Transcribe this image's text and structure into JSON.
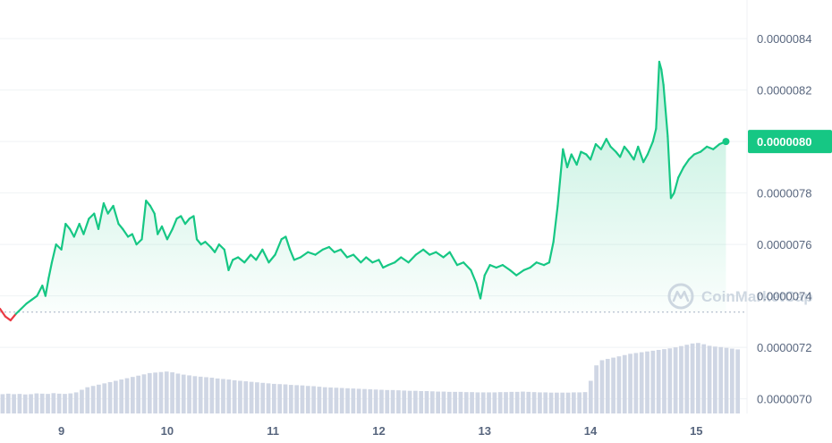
{
  "watermark": "CoinMarketCap",
  "colors": {
    "up": "#16c784",
    "down": "#ea3943",
    "volume": "#cfd6e4",
    "grid": "#eff2f5",
    "baseline": "#a6b0c3"
  },
  "current_price": {
    "label": "0.0000080",
    "value": 8e-06
  },
  "chart_data": {
    "type": "area",
    "x_ticks": [
      "9",
      "10",
      "11",
      "12",
      "13",
      "14",
      "15"
    ],
    "y_ticks": [
      "0.0000084",
      "0.0000082",
      "0.0000080",
      "0.0000078",
      "0.0000076",
      "0.0000074",
      "0.0000072",
      "0.0000070"
    ],
    "y_tick_values": [
      8.4,
      8.2,
      8.0,
      7.8,
      7.6,
      7.4,
      7.2,
      7.0
    ],
    "ylim": [
      6.943,
      8.55
    ],
    "xlim": [
      8.42,
      15.42
    ],
    "baseline_value": 7.337,
    "value_unit": "x 1e-6",
    "price_series": [
      [
        8.42,
        7.35
      ],
      [
        8.47,
        7.32
      ],
      [
        8.52,
        7.305
      ],
      [
        8.57,
        7.33
      ],
      [
        8.62,
        7.35
      ],
      [
        8.67,
        7.37
      ],
      [
        8.72,
        7.385
      ],
      [
        8.77,
        7.4
      ],
      [
        8.82,
        7.44
      ],
      [
        8.85,
        7.4
      ],
      [
        8.88,
        7.47
      ],
      [
        8.91,
        7.53
      ],
      [
        8.95,
        7.6
      ],
      [
        9.0,
        7.58
      ],
      [
        9.04,
        7.68
      ],
      [
        9.08,
        7.66
      ],
      [
        9.12,
        7.63
      ],
      [
        9.17,
        7.68
      ],
      [
        9.21,
        7.64
      ],
      [
        9.26,
        7.7
      ],
      [
        9.31,
        7.72
      ],
      [
        9.35,
        7.66
      ],
      [
        9.4,
        7.76
      ],
      [
        9.44,
        7.72
      ],
      [
        9.49,
        7.75
      ],
      [
        9.54,
        7.68
      ],
      [
        9.58,
        7.66
      ],
      [
        9.63,
        7.63
      ],
      [
        9.67,
        7.64
      ],
      [
        9.71,
        7.6
      ],
      [
        9.76,
        7.62
      ],
      [
        9.8,
        7.77
      ],
      [
        9.84,
        7.75
      ],
      [
        9.88,
        7.72
      ],
      [
        9.91,
        7.64
      ],
      [
        9.95,
        7.67
      ],
      [
        10.0,
        7.62
      ],
      [
        10.05,
        7.66
      ],
      [
        10.09,
        7.7
      ],
      [
        10.13,
        7.71
      ],
      [
        10.17,
        7.68
      ],
      [
        10.21,
        7.7
      ],
      [
        10.25,
        7.71
      ],
      [
        10.28,
        7.62
      ],
      [
        10.32,
        7.6
      ],
      [
        10.36,
        7.61
      ],
      [
        10.41,
        7.59
      ],
      [
        10.45,
        7.57
      ],
      [
        10.49,
        7.6
      ],
      [
        10.54,
        7.58
      ],
      [
        10.58,
        7.5
      ],
      [
        10.62,
        7.54
      ],
      [
        10.67,
        7.55
      ],
      [
        10.73,
        7.53
      ],
      [
        10.79,
        7.56
      ],
      [
        10.84,
        7.54
      ],
      [
        10.9,
        7.58
      ],
      [
        10.96,
        7.53
      ],
      [
        11.02,
        7.56
      ],
      [
        11.08,
        7.62
      ],
      [
        11.12,
        7.63
      ],
      [
        11.16,
        7.58
      ],
      [
        11.2,
        7.54
      ],
      [
        11.26,
        7.55
      ],
      [
        11.33,
        7.57
      ],
      [
        11.4,
        7.56
      ],
      [
        11.47,
        7.58
      ],
      [
        11.53,
        7.59
      ],
      [
        11.58,
        7.57
      ],
      [
        11.64,
        7.58
      ],
      [
        11.7,
        7.55
      ],
      [
        11.76,
        7.56
      ],
      [
        11.83,
        7.53
      ],
      [
        11.88,
        7.55
      ],
      [
        11.94,
        7.53
      ],
      [
        12.0,
        7.54
      ],
      [
        12.04,
        7.51
      ],
      [
        12.09,
        7.52
      ],
      [
        12.15,
        7.53
      ],
      [
        12.21,
        7.55
      ],
      [
        12.28,
        7.53
      ],
      [
        12.35,
        7.56
      ],
      [
        12.42,
        7.58
      ],
      [
        12.48,
        7.56
      ],
      [
        12.54,
        7.57
      ],
      [
        12.61,
        7.55
      ],
      [
        12.67,
        7.57
      ],
      [
        12.74,
        7.52
      ],
      [
        12.8,
        7.53
      ],
      [
        12.87,
        7.5
      ],
      [
        12.92,
        7.45
      ],
      [
        12.96,
        7.39
      ],
      [
        13.0,
        7.48
      ],
      [
        13.05,
        7.52
      ],
      [
        13.11,
        7.51
      ],
      [
        13.17,
        7.52
      ],
      [
        13.24,
        7.5
      ],
      [
        13.3,
        7.48
      ],
      [
        13.37,
        7.5
      ],
      [
        13.43,
        7.51
      ],
      [
        13.49,
        7.53
      ],
      [
        13.56,
        7.52
      ],
      [
        13.61,
        7.53
      ],
      [
        13.65,
        7.61
      ],
      [
        13.69,
        7.75
      ],
      [
        13.74,
        7.97
      ],
      [
        13.78,
        7.9
      ],
      [
        13.82,
        7.95
      ],
      [
        13.87,
        7.91
      ],
      [
        13.91,
        7.96
      ],
      [
        13.96,
        7.95
      ],
      [
        14.0,
        7.93
      ],
      [
        14.05,
        7.99
      ],
      [
        14.1,
        7.97
      ],
      [
        14.15,
        8.01
      ],
      [
        14.19,
        7.98
      ],
      [
        14.24,
        7.96
      ],
      [
        14.28,
        7.94
      ],
      [
        14.32,
        7.98
      ],
      [
        14.36,
        7.96
      ],
      [
        14.41,
        7.93
      ],
      [
        14.45,
        7.98
      ],
      [
        14.5,
        7.92
      ],
      [
        14.54,
        7.95
      ],
      [
        14.59,
        8.0
      ],
      [
        14.62,
        8.05
      ],
      [
        14.65,
        8.31
      ],
      [
        14.67,
        8.28
      ],
      [
        14.69,
        8.22
      ],
      [
        14.71,
        8.12
      ],
      [
        14.73,
        8.02
      ],
      [
        14.76,
        7.78
      ],
      [
        14.79,
        7.8
      ],
      [
        14.83,
        7.86
      ],
      [
        14.88,
        7.9
      ],
      [
        14.93,
        7.93
      ],
      [
        14.98,
        7.95
      ],
      [
        15.04,
        7.96
      ],
      [
        15.1,
        7.98
      ],
      [
        15.16,
        7.97
      ],
      [
        15.22,
        7.99
      ],
      [
        15.28,
        8.0
      ]
    ],
    "volume_series": [
      7.018,
      7.02,
      7.018,
      7.019,
      7.017,
      7.018,
      7.021,
      7.02,
      7.019,
      7.022,
      7.02,
      7.019,
      7.021,
      7.025,
      7.035,
      7.045,
      7.05,
      7.055,
      7.06,
      7.065,
      7.07,
      7.075,
      7.08,
      7.085,
      7.09,
      7.095,
      7.1,
      7.102,
      7.104,
      7.106,
      7.103,
      7.098,
      7.094,
      7.091,
      7.088,
      7.086,
      7.084,
      7.082,
      7.079,
      7.077,
      7.075,
      7.072,
      7.07,
      7.068,
      7.066,
      7.064,
      7.062,
      7.06,
      7.058,
      7.057,
      7.056,
      7.054,
      7.053,
      7.052,
      7.05,
      7.049,
      7.047,
      7.045,
      7.044,
      7.043,
      7.042,
      7.041,
      7.04,
      7.039,
      7.038,
      7.037,
      7.036,
      7.035,
      7.034,
      7.034,
      7.033,
      7.032,
      7.031,
      7.031,
      7.03,
      7.03,
      7.029,
      7.028,
      7.028,
      7.027,
      7.027,
      7.027,
      7.026,
      7.026,
      7.025,
      7.025,
      7.025,
      7.025,
      7.026,
      7.026,
      7.027,
      7.027,
      7.028,
      7.027,
      7.026,
      7.025,
      7.025,
      7.024,
      7.024,
      7.024,
      7.024,
      7.025,
      7.025,
      7.026,
      7.07,
      7.13,
      7.15,
      7.155,
      7.16,
      7.165,
      7.17,
      7.175,
      7.178,
      7.181,
      7.184,
      7.187,
      7.19,
      7.193,
      7.196,
      7.2,
      7.205,
      7.21,
      7.215,
      7.217,
      7.212,
      7.206,
      7.203,
      7.201,
      7.198,
      7.195,
      7.192
    ]
  }
}
